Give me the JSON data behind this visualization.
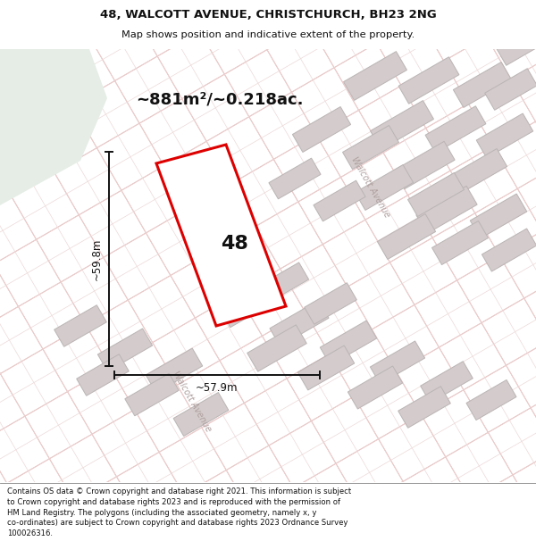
{
  "title_line1": "48, WALCOTT AVENUE, CHRISTCHURCH, BH23 2NG",
  "title_line2": "Map shows position and indicative extent of the property.",
  "area_text": "~881m²/~0.218ac.",
  "dim_width": "~57.9m",
  "dim_height": "~59.8m",
  "property_label": "48",
  "street_label1": "Walcott Avenue",
  "street_label2": "Walcott Avenue",
  "footer_text": "Contains OS data © Crown copyright and database right 2021. This information is subject to Crown copyright and database rights 2023 and is reproduced with the permission of HM Land Registry. The polygons (including the associated geometry, namely x, y co-ordinates) are subject to Crown copyright and database rights 2023 Ordnance Survey 100026316.",
  "map_bg": "#f7f2f2",
  "grid_color_main": "#e0a8a8",
  "grid_color_thin": "#edd8d8",
  "green_color": "#e6ede6",
  "building_color": "#d4cccc",
  "building_edge": "#bbb4b4",
  "property_fill": "#ffffff",
  "property_edge": "#dd0000",
  "dim_line_color": "#111111",
  "title_fg": "#111111",
  "footer_fg": "#111111",
  "white": "#ffffff"
}
